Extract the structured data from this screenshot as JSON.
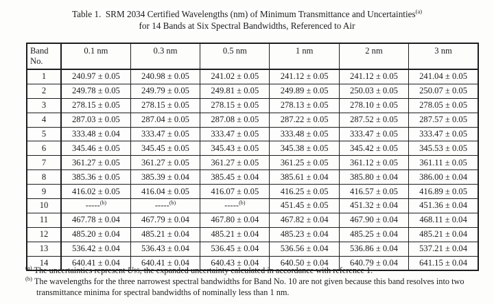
{
  "page": {
    "title_line1": "Table 1.  SRM 2034 Certified Wavelengths (nm) of Minimum Transmittance and Uncertainties",
    "title_line1_sup": "(a)",
    "title_line2": "for 14 Bands at Six Spectral Bandwidths, Referenced to Air"
  },
  "table": {
    "header": {
      "band_line1": "Band",
      "band_line2": "No.",
      "bandwidths": [
        "0.1 nm",
        "0.3 nm",
        "0.5 nm",
        "1 nm",
        "2 nm",
        "3 nm"
      ]
    },
    "rows": [
      {
        "band": "1",
        "cells": [
          "240.97 ± 0.05",
          "240.98 ± 0.05",
          "241.02 ± 0.05",
          "241.12 ± 0.05",
          "241.12 ± 0.05",
          "241.04 ± 0.05"
        ]
      },
      {
        "band": "2",
        "cells": [
          "249.78 ± 0.05",
          "249.79 ± 0.05",
          "249.81 ± 0.05",
          "249.89 ± 0.05",
          "250.03 ± 0.05",
          "250.07 ± 0.05"
        ]
      },
      {
        "band": "3",
        "cells": [
          "278.15 ± 0.05",
          "278.15 ± 0.05",
          "278.15 ± 0.05",
          "278.13 ± 0.05",
          "278.10 ± 0.05",
          "278.05 ± 0.05"
        ]
      },
      {
        "band": "4",
        "cells": [
          "287.03 ± 0.05",
          "287.04 ± 0.05",
          "287.08 ± 0.05",
          "287.22 ± 0.05",
          "287.52 ± 0.05",
          "287.57 ± 0.05"
        ]
      },
      {
        "band": "5",
        "cells": [
          "333.48 ± 0.04",
          "333.47 ± 0.05",
          "333.47 ± 0.05",
          "333.48 ± 0.05",
          "333.47 ± 0.05",
          "333.47 ± 0.05"
        ]
      },
      {
        "band": "6",
        "cells": [
          "345.46 ± 0.05",
          "345.45 ± 0.05",
          "345.43 ± 0.05",
          "345.38 ± 0.05",
          "345.42 ± 0.05",
          "345.53 ± 0.05"
        ]
      },
      {
        "band": "7",
        "cells": [
          "361.27 ± 0.05",
          "361.27 ± 0.05",
          "361.27 ± 0.05",
          "361.25 ± 0.05",
          "361.12 ± 0.05",
          "361.11 ± 0.05"
        ]
      },
      {
        "band": "8",
        "cells": [
          "385.36 ± 0.05",
          "385.39 ± 0.04",
          "385.45 ± 0.04",
          "385.61 ± 0.04",
          "385.80 ± 0.04",
          "386.00 ± 0.04"
        ]
      },
      {
        "band": "9",
        "cells": [
          "416.02 ± 0.05",
          "416.04 ± 0.05",
          "416.07 ± 0.05",
          "416.25 ± 0.05",
          "416.57 ± 0.05",
          "416.89 ± 0.05"
        ]
      },
      {
        "band": "10",
        "cells": [
          {
            "text": "-----",
            "sup": "(b)"
          },
          {
            "text": "-----",
            "sup": "(b)"
          },
          {
            "text": "-----",
            "sup": "(b)"
          },
          "451.45 ± 0.05",
          "451.32 ± 0.04",
          "451.36 ± 0.04"
        ]
      },
      {
        "band": "11",
        "cells": [
          "467.78 ± 0.04",
          "467.79 ± 0.04",
          "467.80 ± 0.04",
          "467.82 ± 0.04",
          "467.90 ± 0.04",
          "468.11 ± 0.04"
        ]
      },
      {
        "band": "12",
        "cells": [
          "485.20 ± 0.04",
          "485.21 ± 0.04",
          "485.21 ± 0.04",
          "485.23 ± 0.04",
          "485.25 ± 0.04",
          "485.21 ± 0.04"
        ]
      },
      {
        "band": "13",
        "cells": [
          "536.42 ± 0.04",
          "536.43 ± 0.04",
          "536.45 ± 0.04",
          "536.56 ± 0.04",
          "536.86 ± 0.04",
          "537.21 ± 0.04"
        ]
      },
      {
        "band": "14",
        "cells": [
          "640.41 ± 0.04",
          "640.41 ± 0.04",
          "640.43 ± 0.04",
          "640.50 ± 0.04",
          "640.79 ± 0.04",
          "641.15 ± 0.04"
        ]
      }
    ]
  },
  "footnotes": {
    "a": {
      "marker": "(a)",
      "pre": "The uncertainties represent ",
      "symbol": "U",
      "symbol_sub": "95",
      "post": ", the expanded uncertainty calculated in accordance with reference 1."
    },
    "b": {
      "marker": "(b)",
      "text": "The wavelengths for the three narrowest spectral bandwidths for Band No. 10 are not given because this band resolves into two transmittance minima for spectral bandwidths of nominally less than 1 nm."
    }
  },
  "colors": {
    "background": "#fdfdfc",
    "text": "#1b1b1b",
    "border": "#1b1b1b"
  }
}
